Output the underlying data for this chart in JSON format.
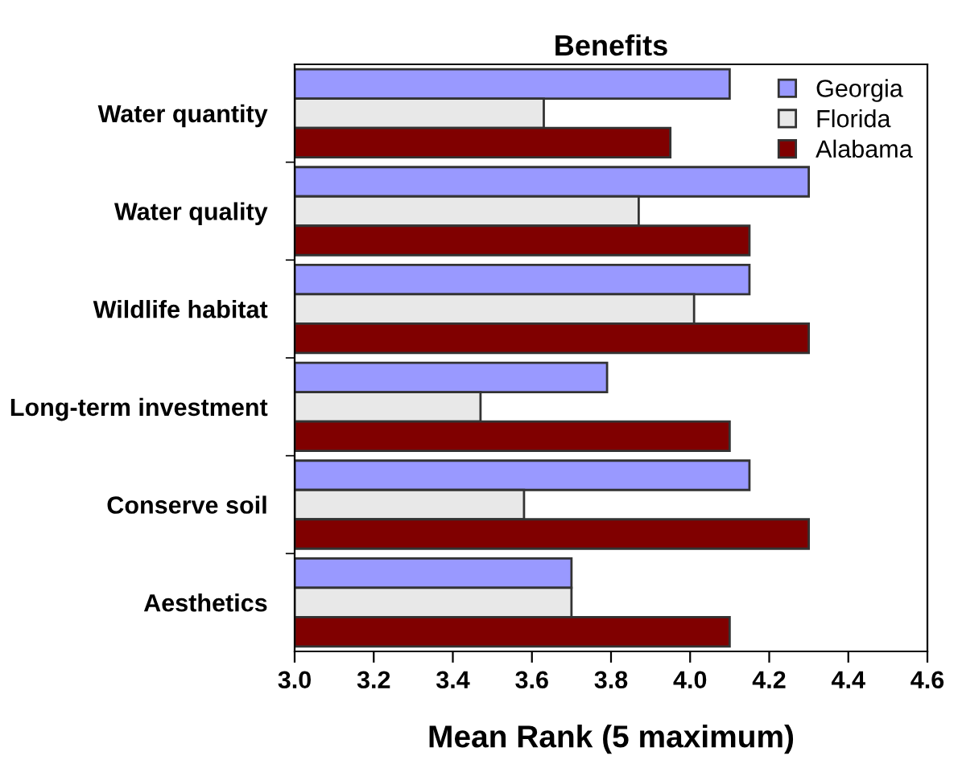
{
  "chart_data": {
    "type": "bar",
    "orientation": "horizontal",
    "title": "Benefits",
    "xlabel": "Mean Rank (5 maximum)",
    "categories": [
      "Water quantity",
      "Water quality",
      "Wildlife habitat",
      "Long-term investment",
      "Conserve soil",
      "Aesthetics"
    ],
    "series": [
      {
        "name": "Georgia",
        "color": "#9999ff",
        "values": [
          4.1,
          4.3,
          4.15,
          3.79,
          4.15,
          3.7
        ]
      },
      {
        "name": "Florida",
        "color": "#e8e8e8",
        "values": [
          3.63,
          3.87,
          4.01,
          3.47,
          3.58,
          3.7
        ]
      },
      {
        "name": "Alabama",
        "color": "#800000",
        "values": [
          3.95,
          4.15,
          4.3,
          4.1,
          4.3,
          4.1
        ]
      }
    ],
    "xlim": [
      3.0,
      4.6
    ],
    "xticks": [
      {
        "value": 3.0,
        "label": "3.0"
      },
      {
        "value": 3.2,
        "label": "3.2"
      },
      {
        "value": 3.4,
        "label": "3.4"
      },
      {
        "value": 3.6,
        "label": "3.6"
      },
      {
        "value": 3.8,
        "label": "3.8"
      },
      {
        "value": 4.0,
        "label": "4.0"
      },
      {
        "value": 4.2,
        "label": "4.2"
      },
      {
        "value": 4.4,
        "label": "4.4"
      },
      {
        "value": 4.6,
        "label": "4.6"
      }
    ],
    "grid": false,
    "legend": "top right"
  }
}
